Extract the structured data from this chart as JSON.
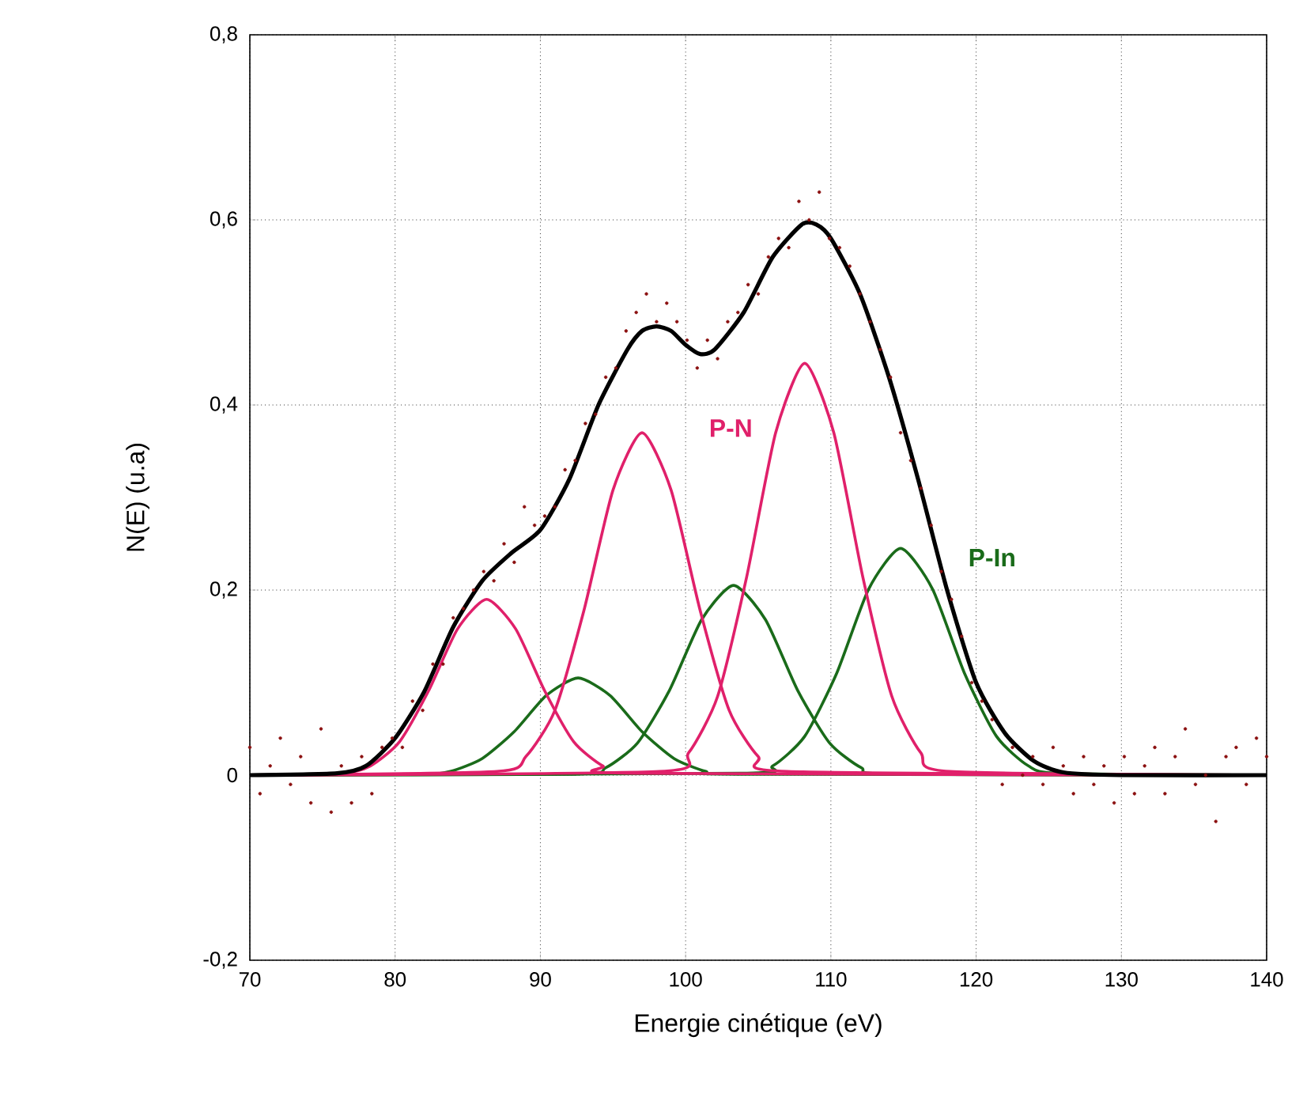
{
  "chart_data": {
    "type": "line",
    "xlabel": "Energie cinétique (eV)",
    "ylabel": "N(E) (u.a)",
    "xlim": [
      70,
      140
    ],
    "xticks": [
      70,
      80,
      90,
      100,
      110,
      120,
      130,
      140
    ],
    "ylim": [
      -0.2,
      0.8
    ],
    "yticks": [
      {
        "value": -0.2,
        "label": "-0,2"
      },
      {
        "value": 0,
        "label": "0"
      },
      {
        "value": 0.2,
        "label": "0,2"
      },
      {
        "value": 0.4,
        "label": "0,4"
      },
      {
        "value": 0.6,
        "label": "0,6"
      },
      {
        "value": 0.8,
        "label": "0,8"
      }
    ],
    "grid": true,
    "annotations": [
      "P-N",
      "P-In"
    ],
    "series": [
      {
        "type": "scatter",
        "color": "#8b1010",
        "x": [
          70.0,
          70.7,
          71.4,
          72.1,
          72.8,
          73.5,
          74.2,
          74.9,
          75.6,
          76.3,
          77.0,
          77.7,
          78.4,
          79.1,
          79.8,
          80.5,
          81.2,
          81.9,
          82.6,
          83.3,
          84.0,
          84.7,
          85.4,
          86.1,
          86.8,
          87.5,
          88.2,
          88.9,
          89.6,
          90.3,
          91.0,
          91.7,
          92.4,
          93.1,
          93.8,
          94.5,
          95.2,
          95.9,
          96.6,
          97.3,
          98.0,
          98.7,
          99.4,
          100.1,
          100.8,
          101.5,
          102.2,
          102.9,
          103.6,
          104.3,
          105.0,
          105.7,
          106.4,
          107.1,
          107.8,
          108.5,
          109.2,
          109.9,
          110.6,
          111.3,
          112.0,
          112.7,
          113.4,
          114.1,
          114.8,
          115.5,
          116.2,
          116.9,
          117.6,
          118.3,
          119.0,
          119.7,
          120.4,
          121.1,
          121.8,
          122.5,
          123.2,
          123.9,
          124.6,
          125.3,
          126.0,
          126.7,
          127.4,
          128.1,
          128.8,
          129.5,
          130.2,
          130.9,
          131.6,
          132.3,
          133.0,
          133.7,
          134.4,
          135.1,
          135.8,
          136.5,
          137.2,
          137.9,
          138.6,
          139.3,
          140.0
        ],
        "values": [
          0.03,
          -0.02,
          0.01,
          0.04,
          -0.01,
          0.02,
          -0.03,
          0.05,
          -0.04,
          0.01,
          -0.03,
          0.02,
          -0.02,
          0.03,
          0.04,
          0.03,
          0.08,
          0.07,
          0.12,
          0.12,
          0.17,
          0.18,
          0.2,
          0.22,
          0.21,
          0.25,
          0.23,
          0.29,
          0.27,
          0.28,
          0.29,
          0.33,
          0.34,
          0.38,
          0.39,
          0.43,
          0.44,
          0.48,
          0.5,
          0.52,
          0.49,
          0.51,
          0.49,
          0.47,
          0.44,
          0.47,
          0.45,
          0.49,
          0.5,
          0.53,
          0.52,
          0.56,
          0.58,
          0.57,
          0.62,
          0.6,
          0.63,
          0.58,
          0.57,
          0.55,
          0.52,
          0.49,
          0.46,
          0.43,
          0.37,
          0.34,
          0.31,
          0.27,
          0.22,
          0.19,
          0.15,
          0.1,
          0.08,
          0.06,
          -0.01,
          0.03,
          0.0,
          0.02,
          -0.01,
          0.03,
          0.01,
          -0.02,
          0.02,
          -0.01,
          0.01,
          -0.03,
          0.02,
          -0.02,
          0.01,
          0.03,
          -0.02,
          0.02,
          0.05,
          -0.01,
          0.0,
          -0.05,
          0.02,
          0.03,
          -0.01,
          0.04,
          0.02
        ]
      },
      {
        "color": "#1a6b1a",
        "x": [
          70,
          81.6,
          83.8,
          86,
          88.2,
          90.4,
          92.6,
          94.8,
          97,
          99.2,
          101.4,
          103.6,
          140
        ],
        "values": [
          0,
          0.001,
          0.004,
          0.018,
          0.047,
          0.086,
          0.105,
          0.086,
          0.047,
          0.018,
          0.004,
          0.001,
          0
        ]
      },
      {
        "color": "#1a6b1a",
        "x": [
          70,
          92.3,
          94.5,
          96.7,
          98.9,
          101.1,
          103.3,
          105.5,
          107.7,
          109.9,
          112.1,
          114.3,
          140
        ],
        "values": [
          0,
          0.001,
          0.008,
          0.035,
          0.092,
          0.168,
          0.205,
          0.168,
          0.092,
          0.035,
          0.008,
          0.001,
          0
        ]
      },
      {
        "color": "#1a6b1a",
        "x": [
          70,
          103.8,
          106,
          108.2,
          110.4,
          112.6,
          114.8,
          117,
          119.2,
          121.4,
          123.6,
          125.8,
          140
        ],
        "values": [
          0,
          0.002,
          0.01,
          0.042,
          0.11,
          0.201,
          0.245,
          0.201,
          0.11,
          0.042,
          0.01,
          0.002,
          0
        ]
      },
      {
        "color": "#e0206a",
        "x": [
          70,
          76.3,
          78.3,
          80.3,
          82.3,
          84.3,
          86.3,
          88.3,
          90.3,
          92.3,
          94.3,
          96.3,
          140
        ],
        "values": [
          0,
          0.002,
          0.01,
          0.036,
          0.091,
          0.158,
          0.19,
          0.158,
          0.091,
          0.036,
          0.01,
          0.002,
          0
        ]
      },
      {
        "color": "#e0206a",
        "x": [
          70,
          87,
          89,
          91,
          93,
          95,
          97,
          99,
          101,
          103,
          105,
          107,
          140
        ],
        "values": [
          0,
          0.004,
          0.02,
          0.07,
          0.178,
          0.308,
          0.37,
          0.308,
          0.178,
          0.07,
          0.02,
          0.004,
          0
        ]
      },
      {
        "color": "#e0206a",
        "x": [
          70,
          98.2,
          100.2,
          102.2,
          104.2,
          106.2,
          108.2,
          110.2,
          112.2,
          114.2,
          116.2,
          118.2,
          140
        ],
        "values": [
          0,
          0.004,
          0.024,
          0.085,
          0.214,
          0.37,
          0.445,
          0.37,
          0.214,
          0.085,
          0.024,
          0.004,
          0
        ]
      },
      {
        "color": "#000000",
        "x": [
          70,
          76,
          78,
          80,
          82,
          84,
          86,
          88,
          90,
          92,
          94,
          96,
          97,
          98,
          99,
          100,
          101,
          102,
          104,
          106,
          108,
          109,
          110,
          112,
          114,
          116,
          118,
          120,
          122,
          124,
          126,
          130,
          140
        ],
        "values": [
          0,
          0.002,
          0.01,
          0.04,
          0.09,
          0.16,
          0.21,
          0.24,
          0.265,
          0.32,
          0.4,
          0.46,
          0.48,
          0.485,
          0.48,
          0.465,
          0.455,
          0.46,
          0.5,
          0.56,
          0.595,
          0.595,
          0.58,
          0.52,
          0.43,
          0.32,
          0.2,
          0.1,
          0.045,
          0.015,
          0.003,
          0,
          0
        ]
      }
    ]
  }
}
